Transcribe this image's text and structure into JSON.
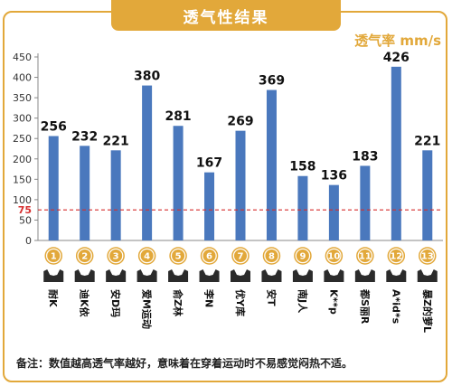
{
  "header": {
    "title": "透气性结果",
    "unit_label": "透气率 mm/s"
  },
  "chart_data": {
    "type": "bar",
    "categories": [
      "耐K",
      "迪K依",
      "安D玛",
      "爱M运动",
      "俞Z林",
      "李N",
      "优Y库",
      "安T",
      "南J人",
      "K**p",
      "都S丽R",
      "A*id*s",
      "暴Z的萝L"
    ],
    "indices": [
      "1",
      "2",
      "3",
      "4",
      "5",
      "6",
      "7",
      "8",
      "9",
      "10",
      "11",
      "12",
      "13"
    ],
    "values": [
      256,
      232,
      221,
      380,
      281,
      167,
      269,
      369,
      158,
      136,
      183,
      426,
      221
    ],
    "yticks": [
      0,
      50,
      100,
      150,
      200,
      250,
      300,
      350,
      400,
      450
    ],
    "ylim": [
      0,
      450
    ],
    "reference_line": {
      "value": 75,
      "label": "75",
      "color": "#d62d2d"
    },
    "bar_color": "#4a78bd",
    "index_badge_color": "#e2a83a",
    "grid": false
  },
  "footnote": "备注：数值越高透气率越好，意味着在穿着运动时不易感觉闷热不适。",
  "colors": {
    "accent": "#e2a83a",
    "bar": "#4a78bd",
    "reference": "#d62d2d"
  }
}
